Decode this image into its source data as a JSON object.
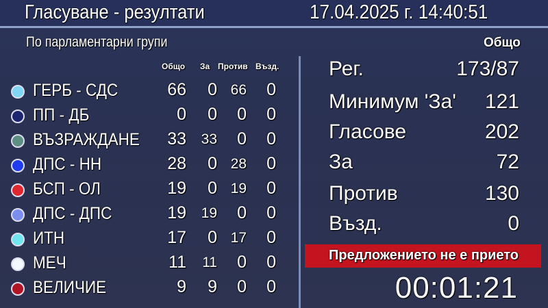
{
  "header": {
    "title": "Гласуване - резултати",
    "datetime": "17.04.2025 г.  14:40:51"
  },
  "left": {
    "subtitle": "По парламентарни групи",
    "columns": [
      "Общо",
      "За",
      "Против",
      "Възд."
    ],
    "groups": [
      {
        "name": "ГЕРБ - СДС",
        "color": "#7fd6f5",
        "total": "66",
        "for": "0",
        "against": "66",
        "abstain": "0"
      },
      {
        "name": "ПП - ДБ",
        "color": "#1c2670",
        "total": "0",
        "for": "0",
        "against": "0",
        "abstain": "0"
      },
      {
        "name": "ВЪЗРАЖДАНЕ",
        "color": "#5e8f84",
        "total": "33",
        "for": "33",
        "against": "0",
        "abstain": "0"
      },
      {
        "name": "ДПС - НН",
        "color": "#1f3cf0",
        "total": "28",
        "for": "0",
        "against": "28",
        "abstain": "0"
      },
      {
        "name": "БСП - ОЛ",
        "color": "#e0262e",
        "total": "19",
        "for": "0",
        "against": "19",
        "abstain": "0"
      },
      {
        "name": "ДПС - ДПС",
        "color": "#7a8ef0",
        "total": "19",
        "for": "19",
        "against": "0",
        "abstain": "0"
      },
      {
        "name": "ИТН",
        "color": "#6fe6f0",
        "total": "17",
        "for": "0",
        "against": "17",
        "abstain": "0"
      },
      {
        "name": "МЕЧ",
        "color": "#f4f8ff",
        "total": "11",
        "for": "11",
        "against": "0",
        "abstain": "0"
      },
      {
        "name": "ВЕЛИЧИЕ",
        "color": "#b01425",
        "total": "9",
        "for": "9",
        "against": "0",
        "abstain": "0"
      }
    ]
  },
  "right": {
    "heading": "Общо",
    "stats": [
      {
        "label": "Рег.",
        "value": "173/87"
      },
      {
        "label": "Минимум 'За'",
        "value": "121"
      },
      {
        "label": "Гласове",
        "value": "202"
      },
      {
        "label": "За",
        "value": "72"
      },
      {
        "label": "Против",
        "value": "130"
      },
      {
        "label": "Възд.",
        "value": "0"
      }
    ],
    "status": "Предложението не е прието",
    "status_color": "#c4141f",
    "timer": "00:01:21"
  }
}
